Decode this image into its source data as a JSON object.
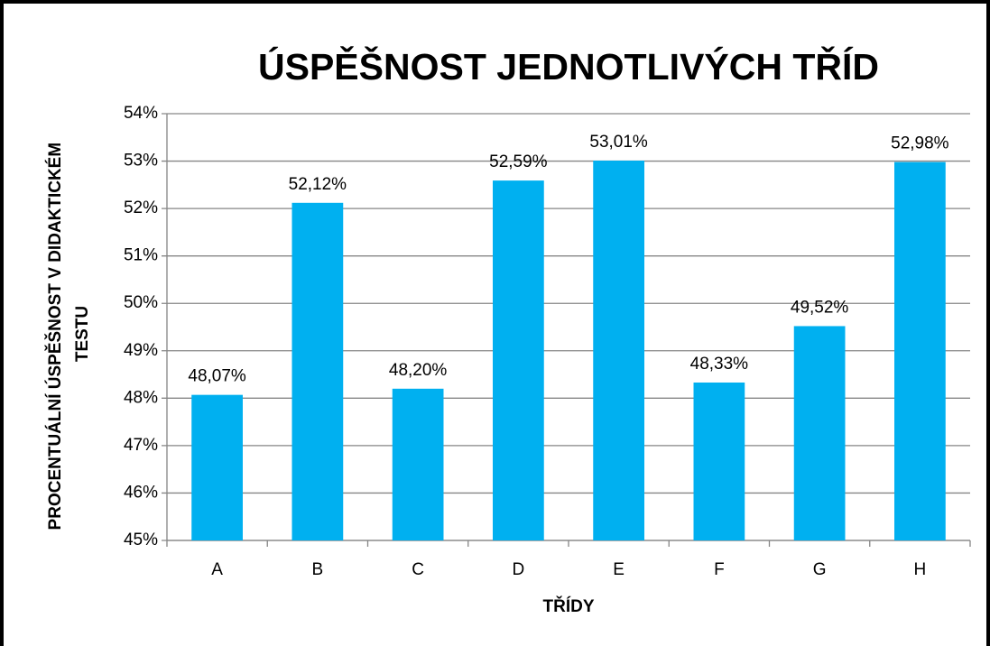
{
  "chart_data": {
    "type": "bar",
    "title": "ÚSPĚŠNOST JEDNOTLIVÝCH TŘÍD",
    "x_label": "TŘÍDY",
    "y_label": "PROCENTUÁLNÍ ÚSPĚŠNOST V DIDAKTICKÉM TESTU",
    "categories": [
      "A",
      "B",
      "C",
      "D",
      "E",
      "F",
      "G",
      "H"
    ],
    "values": [
      48.07,
      52.12,
      48.2,
      52.59,
      53.01,
      48.33,
      49.52,
      52.98
    ],
    "value_labels": [
      "48,07%",
      "52,12%",
      "48,20%",
      "52,59%",
      "53,01%",
      "48,33%",
      "49,52%",
      "52,98%"
    ],
    "color": "#00b0f0",
    "ylim": [
      45,
      54
    ],
    "yticks": [
      {
        "value": 45,
        "label": "45%"
      },
      {
        "value": 46,
        "label": "46%"
      },
      {
        "value": 47,
        "label": "47%"
      },
      {
        "value": 48,
        "label": "48%"
      },
      {
        "value": 49,
        "label": "49%"
      },
      {
        "value": 50,
        "label": "50%"
      },
      {
        "value": 51,
        "label": "51%"
      },
      {
        "value": 52,
        "label": "52%"
      },
      {
        "value": 53,
        "label": "53%"
      },
      {
        "value": 54,
        "label": "54%"
      }
    ],
    "grid": true
  }
}
